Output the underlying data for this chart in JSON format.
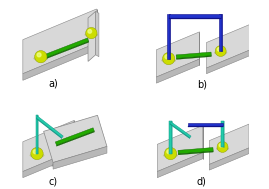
{
  "background_color": "#ffffff",
  "panel_labels": [
    "a)",
    "b)",
    "c)",
    "d)"
  ],
  "platform_top": "#d8d8d8",
  "platform_front": "#b8b8b8",
  "platform_right": "#c8c8c8",
  "platform_edge": "#888888",
  "sphere_color": "#ccdd00",
  "sphere_highlight": "#eeff88",
  "sphere_shadow": "#889900",
  "green_top": "#22aa00",
  "green_side": "#116600",
  "blue_color": "#2233cc",
  "blue_dark": "#111188",
  "cyan_color": "#22ccaa",
  "cyan_dark": "#119988",
  "label_fontsize": 7
}
